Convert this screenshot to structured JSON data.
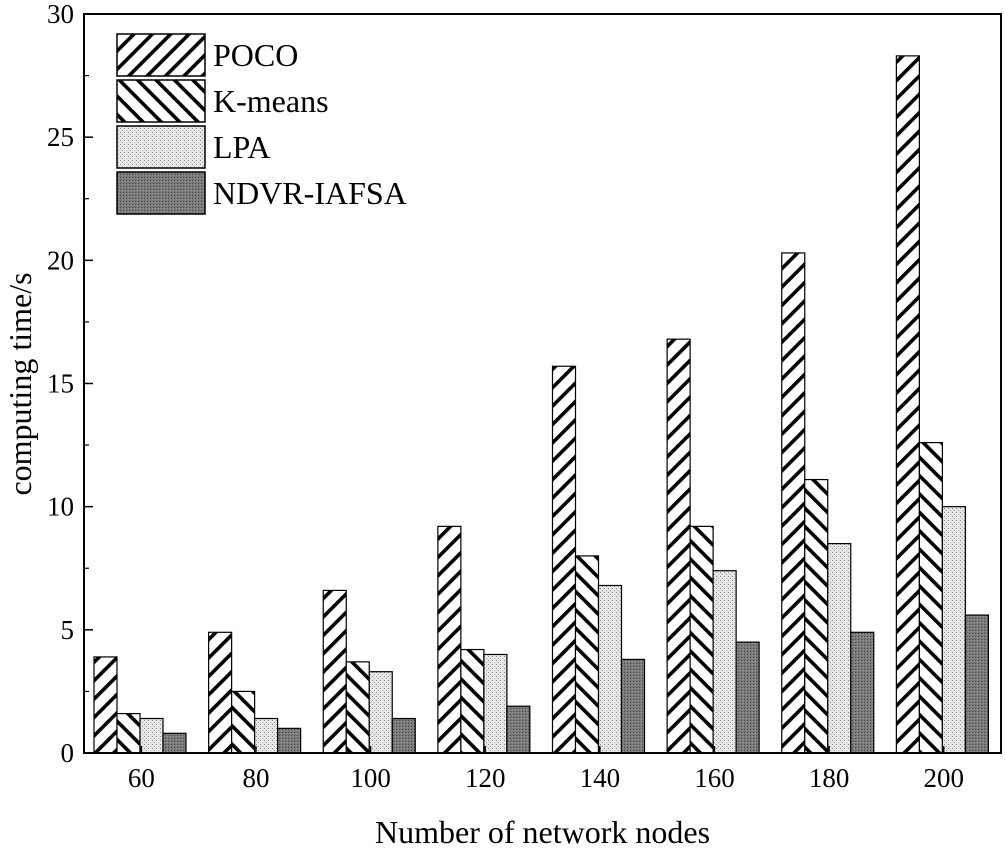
{
  "chart_data": {
    "type": "bar",
    "xlabel": "Number of network nodes",
    "ylabel": "computing time/s",
    "ylim": [
      0,
      30
    ],
    "yticks": [
      0,
      5,
      10,
      15,
      20,
      25,
      30
    ],
    "categories": [
      "60",
      "80",
      "100",
      "120",
      "140",
      "160",
      "180",
      "200"
    ],
    "series": [
      {
        "name": "POCO",
        "pattern": "diagonal-up",
        "values": [
          3.9,
          4.9,
          6.6,
          9.2,
          15.7,
          16.8,
          20.3,
          28.3
        ]
      },
      {
        "name": "K-means",
        "pattern": "diagonal-down",
        "values": [
          1.6,
          2.5,
          3.7,
          4.2,
          8.0,
          9.2,
          11.1,
          12.6
        ]
      },
      {
        "name": "LPA",
        "pattern": "light-dots",
        "values": [
          1.4,
          1.4,
          3.3,
          4.0,
          6.8,
          7.4,
          8.5,
          10.0
        ]
      },
      {
        "name": "NDVR-IAFSA",
        "pattern": "dark-grey",
        "values": [
          0.8,
          1.0,
          1.4,
          1.9,
          3.8,
          4.5,
          4.9,
          5.6
        ]
      }
    ],
    "legend_position": "top-left",
    "grid": false
  }
}
